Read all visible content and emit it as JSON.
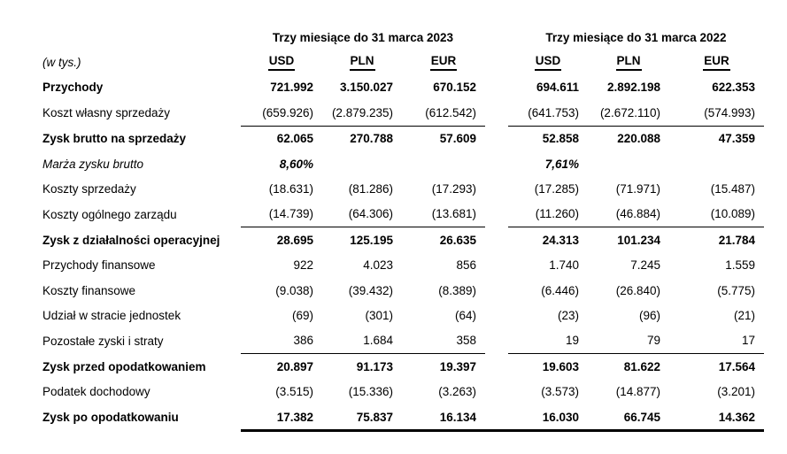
{
  "page": {
    "background_color": "#ffffff",
    "text_color": "#000000"
  },
  "table": {
    "unit_label": "(w tys.)",
    "col_groups": [
      {
        "label": "Trzy miesiące do 31 marca 2023",
        "columns": [
          "USD",
          "PLN",
          "EUR"
        ]
      },
      {
        "label": "Trzy miesiące do 31 marca 2022",
        "columns": [
          "USD",
          "PLN",
          "EUR"
        ]
      }
    ],
    "rows": [
      {
        "label": "Przychody",
        "style": "bold",
        "underline": "none",
        "values": [
          "721.992",
          "3.150.027",
          "670.152",
          "694.611",
          "2.892.198",
          "622.353"
        ]
      },
      {
        "label": "Koszt własny sprzedaży",
        "style": "normal",
        "underline": "group",
        "values": [
          "(659.926)",
          "(2.879.235)",
          "(612.542)",
          "(641.753)",
          "(2.672.110)",
          "(574.993)"
        ]
      },
      {
        "label": "Zysk brutto na sprzedaży",
        "style": "bold",
        "underline": "none",
        "values": [
          "62.065",
          "270.788",
          "57.609",
          "52.858",
          "220.088",
          "47.359"
        ]
      },
      {
        "label": "Marża zysku brutto",
        "style": "italic",
        "underline": "none",
        "values": [
          "8,60%",
          "",
          "",
          "7,61%",
          "",
          ""
        ]
      },
      {
        "label": "Koszty sprzedaży",
        "style": "normal",
        "underline": "none",
        "values": [
          "(18.631)",
          "(81.286)",
          "(17.293)",
          "(17.285)",
          "(71.971)",
          "(15.487)"
        ]
      },
      {
        "label": "Koszty ogólnego zarządu",
        "style": "normal",
        "underline": "group",
        "values": [
          "(14.739)",
          "(64.306)",
          "(13.681)",
          "(11.260)",
          "(46.884)",
          "(10.089)"
        ]
      },
      {
        "label": "Zysk z działalności operacyjnej",
        "style": "bold",
        "underline": "none",
        "values": [
          "28.695",
          "125.195",
          "26.635",
          "24.313",
          "101.234",
          "21.784"
        ]
      },
      {
        "label": "Przychody finansowe",
        "style": "normal",
        "underline": "none",
        "values": [
          "922",
          "4.023",
          "856",
          "1.740",
          "7.245",
          "1.559"
        ]
      },
      {
        "label": "Koszty finansowe",
        "style": "normal",
        "underline": "none",
        "values": [
          "(9.038)",
          "(39.432)",
          "(8.389)",
          "(6.446)",
          "(26.840)",
          "(5.775)"
        ]
      },
      {
        "label": "Udział w stracie jednostek",
        "style": "normal",
        "underline": "none",
        "values": [
          "(69)",
          "(301)",
          "(64)",
          "(23)",
          "(96)",
          "(21)"
        ]
      },
      {
        "label": "Pozostałe zyski i straty",
        "style": "normal",
        "underline": "group",
        "values": [
          "386",
          "1.684",
          "358",
          "19",
          "79",
          "17"
        ]
      },
      {
        "label": "Zysk przed opodatkowaniem",
        "style": "bold",
        "underline": "none",
        "values": [
          "20.897",
          "91.173",
          "19.397",
          "19.603",
          "81.622",
          "17.564"
        ]
      },
      {
        "label": "Podatek dochodowy",
        "style": "normal",
        "underline": "none",
        "values": [
          "(3.515)",
          "(15.336)",
          "(3.263)",
          "(3.573)",
          "(14.877)",
          "(3.201)"
        ]
      },
      {
        "label": "Zysk po opodatkowaniu",
        "style": "bold",
        "underline": "full",
        "values": [
          "17.382",
          "75.837",
          "16.134",
          "16.030",
          "66.745",
          "14.362"
        ]
      }
    ]
  }
}
